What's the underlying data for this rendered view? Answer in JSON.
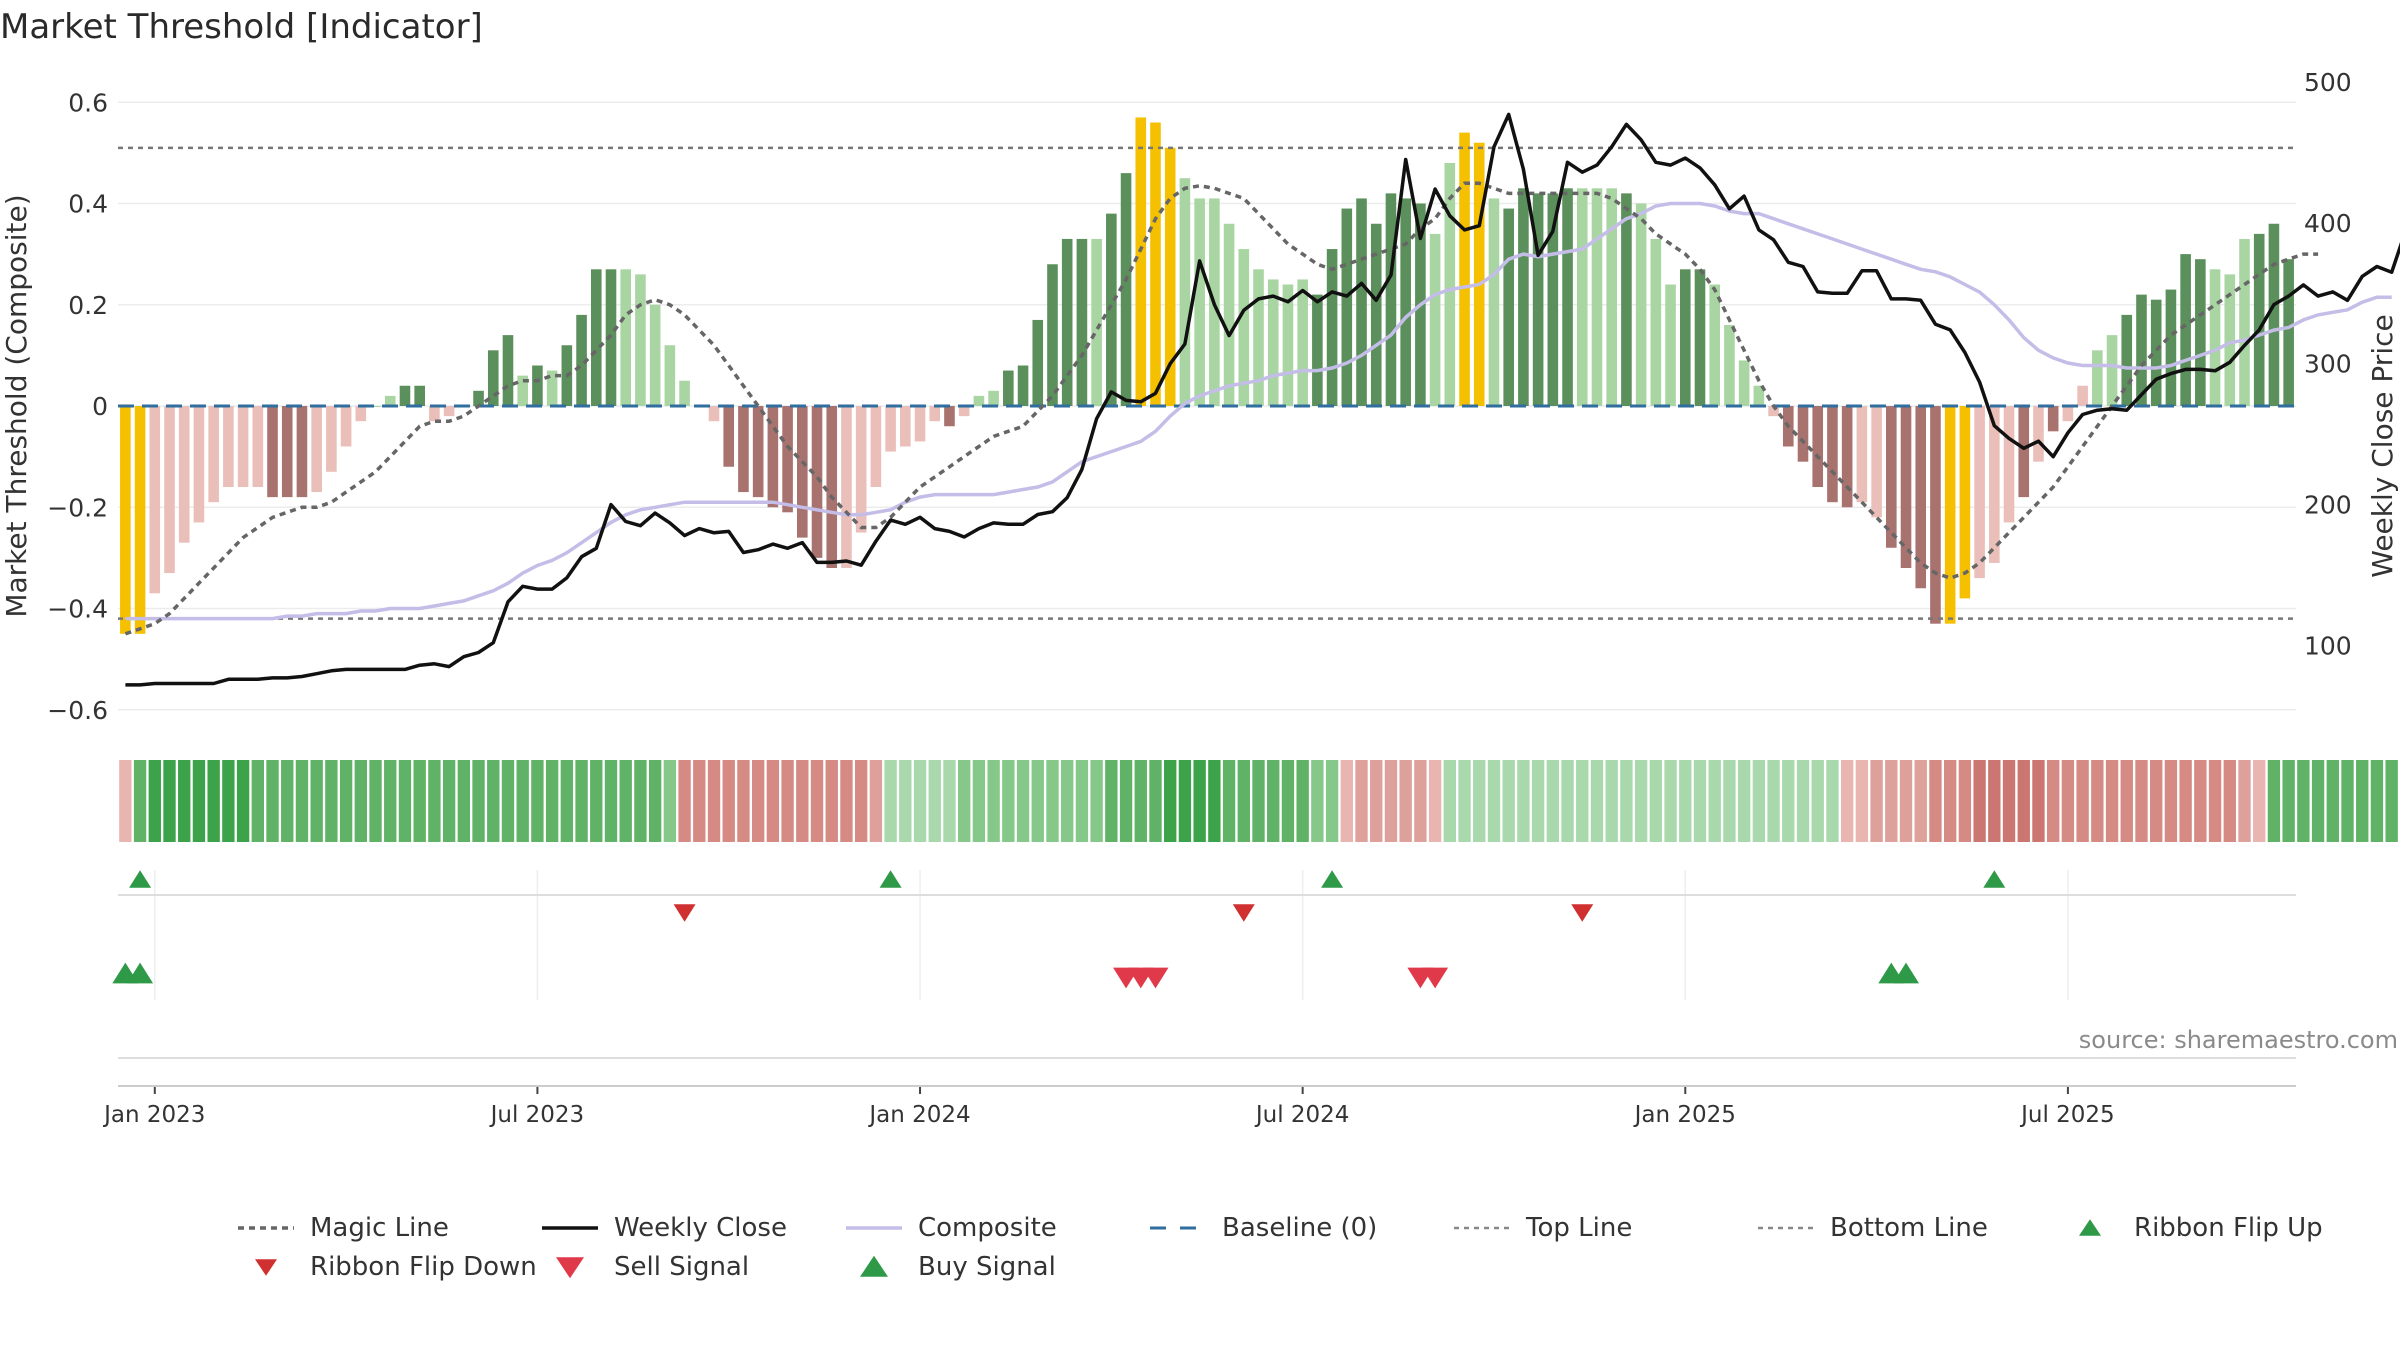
{
  "title": "Market Threshold [Indicator]",
  "source": "source: sharemaestro.com",
  "colors": {
    "strong_green": "#5b8f5b",
    "light_green": "#a8d5a2",
    "strong_red": "#a8726e",
    "light_red": "#eabfb9",
    "extreme": "#f5c000",
    "close": "#111111",
    "composite": "#c3bde8",
    "magic": "#666666",
    "baseline": "#2f6e9e",
    "flip_up": "#2e9a48",
    "flip_down": "#d03030",
    "sell": "#e0394a",
    "buy": "#2e9a48"
  },
  "chart_data": {
    "type": "bar",
    "title": "Market Threshold [Indicator]",
    "ylabel": "Market Threshold (Composite)",
    "ylabel_right": "Weekly Close Price",
    "ylim": [
      -0.64,
      0.64
    ],
    "ylim_right": [
      40,
      500
    ],
    "yticks": [
      {
        "v": 0.6,
        "label": "0.6"
      },
      {
        "v": 0.4,
        "label": "0.4"
      },
      {
        "v": 0.2,
        "label": "0.2"
      },
      {
        "v": 0,
        "label": "0"
      },
      {
        "v": -0.2,
        "label": "−0.2"
      },
      {
        "v": -0.4,
        "label": "−0.4"
      },
      {
        "v": -0.6,
        "label": "−0.6"
      }
    ],
    "yticks_right": [
      {
        "v": 500,
        "label": "500"
      },
      {
        "v": 400,
        "label": "400"
      },
      {
        "v": 300,
        "label": "300"
      },
      {
        "v": 200,
        "label": "200"
      },
      {
        "v": 100,
        "label": "100"
      }
    ],
    "xticks": [
      {
        "i": 2,
        "label": "Jan 2023"
      },
      {
        "i": 28,
        "label": "Jul 2023"
      },
      {
        "i": 54,
        "label": "Jan 2024"
      },
      {
        "i": 80,
        "label": "Jul 2024"
      },
      {
        "i": 106,
        "label": "Jan 2025"
      },
      {
        "i": 132,
        "label": "Jul 2025"
      }
    ],
    "top_line": 0.51,
    "bottom_line": -0.42,
    "grid": true,
    "legend_position": "bottom",
    "legend": [
      "Magic Line",
      "Weekly Close",
      "Composite",
      "Baseline (0)",
      "Top Line",
      "Bottom Line",
      "Ribbon Flip Up",
      "Ribbon Flip Down",
      "Sell Signal",
      "Buy Signal"
    ],
    "composite_bars": [
      -0.45,
      -0.45,
      -0.37,
      -0.33,
      -0.27,
      -0.23,
      -0.19,
      -0.16,
      -0.16,
      -0.16,
      -0.18,
      -0.18,
      -0.18,
      -0.17,
      -0.13,
      -0.08,
      -0.03,
      0,
      0.02,
      0.04,
      0.04,
      -0.03,
      -0.02,
      0,
      0.03,
      0.11,
      0.14,
      0.06,
      0.08,
      0.07,
      0.12,
      0.18,
      0.27,
      0.27,
      0.27,
      0.26,
      0.2,
      0.12,
      0.05,
      0,
      -0.03,
      -0.12,
      -0.17,
      -0.18,
      -0.2,
      -0.21,
      -0.26,
      -0.3,
      -0.32,
      -0.32,
      -0.25,
      -0.16,
      -0.09,
      -0.08,
      -0.07,
      -0.03,
      -0.04,
      -0.02,
      0.02,
      0.03,
      0.07,
      0.08,
      0.17,
      0.28,
      0.33,
      0.33,
      0.33,
      0.38,
      0.46,
      0.57,
      0.56,
      0.51,
      0.45,
      0.41,
      0.41,
      0.36,
      0.31,
      0.27,
      0.25,
      0.24,
      0.25,
      0.22,
      0.31,
      0.39,
      0.41,
      0.36,
      0.42,
      0.41,
      0.4,
      0.34,
      0.48,
      0.54,
      0.52,
      0.41,
      0.39,
      0.43,
      0.42,
      0.42,
      0.43,
      0.43,
      0.43,
      0.43,
      0.42,
      0.4,
      0.33,
      0.24,
      0.27,
      0.27,
      0.24,
      0.16,
      0.09,
      0.04,
      -0.02,
      -0.08,
      -0.11,
      -0.16,
      -0.19,
      -0.2,
      -0.19,
      -0.22,
      -0.28,
      -0.32,
      -0.36,
      -0.43,
      -0.43,
      -0.38,
      -0.34,
      -0.31,
      -0.23,
      -0.18,
      -0.11,
      -0.05,
      -0.03,
      0.04,
      0.11,
      0.14,
      0.18,
      0.22,
      0.21,
      0.23,
      0.3,
      0.29,
      0.27,
      0.26,
      0.33,
      0.34,
      0.36,
      0.29
    ],
    "bar_class": [
      "Y",
      "Y",
      "LR",
      "LR",
      "LR",
      "LR",
      "LR",
      "LR",
      "LR",
      "LR",
      "SR",
      "SR",
      "SR",
      "LR",
      "LR",
      "LR",
      "LR",
      "LG",
      "LG",
      "SG",
      "SG",
      "LR",
      "LR",
      "LG",
      "SG",
      "SG",
      "SG",
      "LG",
      "SG",
      "LG",
      "SG",
      "SG",
      "SG",
      "SG",
      "LG",
      "LG",
      "LG",
      "LG",
      "LG",
      "LR",
      "LR",
      "SR",
      "SR",
      "SR",
      "SR",
      "SR",
      "SR",
      "SR",
      "SR",
      "LR",
      "LR",
      "LR",
      "LR",
      "LR",
      "LR",
      "LR",
      "SR",
      "LR",
      "LG",
      "LG",
      "SG",
      "SG",
      "SG",
      "SG",
      "SG",
      "SG",
      "LG",
      "SG",
      "SG",
      "Y",
      "Y",
      "Y",
      "LG",
      "LG",
      "LG",
      "LG",
      "LG",
      "LG",
      "LG",
      "LG",
      "LG",
      "SG",
      "SG",
      "SG",
      "SG",
      "SG",
      "SG",
      "SG",
      "SG",
      "LG",
      "LG",
      "Y",
      "Y",
      "LG",
      "SG",
      "SG",
      "SG",
      "SG",
      "SG",
      "LG",
      "LG",
      "LG",
      "SG",
      "LG",
      "LG",
      "LG",
      "SG",
      "SG",
      "LG",
      "LG",
      "LG",
      "LG",
      "LR",
      "SR",
      "SR",
      "SR",
      "SR",
      "SR",
      "LR",
      "LR",
      "SR",
      "SR",
      "SR",
      "SR",
      "Y",
      "Y",
      "LR",
      "LR",
      "LR",
      "SR",
      "LR",
      "SR",
      "LR",
      "LR",
      "LG",
      "LG",
      "SG",
      "SG",
      "SG",
      "SG",
      "SG",
      "SG",
      "LG",
      "LG",
      "LG",
      "SG",
      "SG",
      "SG",
      "LG"
    ],
    "weekly_close": [
      72,
      72,
      73,
      73,
      73,
      73,
      73,
      76,
      76,
      76,
      77,
      77,
      78,
      80,
      82,
      83,
      83,
      83,
      83,
      83,
      86,
      87,
      85,
      92,
      95,
      102,
      131,
      142,
      140,
      140,
      148,
      163,
      169,
      200,
      188,
      185,
      194,
      187,
      178,
      183,
      180,
      181,
      166,
      168,
      172,
      169,
      173,
      159,
      159,
      160,
      157,
      174,
      189,
      186,
      191,
      183,
      181,
      177,
      183,
      187,
      186,
      186,
      193,
      195,
      205,
      225,
      261,
      280,
      274,
      273,
      279,
      300,
      314,
      373,
      342,
      320,
      338,
      346,
      348,
      344,
      352,
      344,
      351,
      348,
      357,
      345,
      363,
      445,
      389,
      424,
      405,
      395,
      398,
      454,
      477,
      438,
      377,
      394,
      443,
      436,
      441,
      454,
      470,
      459,
      443,
      441,
      446,
      439,
      427,
      410,
      419,
      395,
      388,
      372,
      369,
      351,
      350,
      350,
      366,
      366,
      346,
      346,
      345,
      328,
      324,
      308,
      287,
      256,
      247,
      240,
      245,
      234,
      251,
      264,
      267,
      268,
      267,
      278,
      289,
      293,
      296,
      296,
      295,
      301,
      313,
      324,
      342,
      348,
      356,
      348,
      351,
      345,
      362,
      369,
      365,
      396,
      387,
      381,
      382,
      362
    ],
    "composite_line": [
      -0.42,
      -0.42,
      -0.42,
      -0.42,
      -0.42,
      -0.42,
      -0.42,
      -0.42,
      -0.42,
      -0.42,
      -0.42,
      -0.415,
      -0.415,
      -0.41,
      -0.41,
      -0.41,
      -0.405,
      -0.405,
      -0.4,
      -0.4,
      -0.4,
      -0.395,
      -0.39,
      -0.385,
      -0.375,
      -0.365,
      -0.35,
      -0.33,
      -0.315,
      -0.305,
      -0.29,
      -0.27,
      -0.25,
      -0.23,
      -0.215,
      -0.205,
      -0.2,
      -0.195,
      -0.19,
      -0.19,
      -0.19,
      -0.19,
      -0.19,
      -0.19,
      -0.19,
      -0.195,
      -0.2,
      -0.205,
      -0.21,
      -0.215,
      -0.215,
      -0.21,
      -0.205,
      -0.19,
      -0.18,
      -0.175,
      -0.175,
      -0.175,
      -0.175,
      -0.175,
      -0.17,
      -0.165,
      -0.16,
      -0.15,
      -0.13,
      -0.11,
      -0.1,
      -0.09,
      -0.08,
      -0.07,
      -0.05,
      -0.02,
      0.005,
      0.02,
      0.03,
      0.04,
      0.045,
      0.05,
      0.06,
      0.065,
      0.07,
      0.07,
      0.075,
      0.085,
      0.1,
      0.12,
      0.14,
      0.175,
      0.2,
      0.22,
      0.23,
      0.235,
      0.24,
      0.26,
      0.29,
      0.3,
      0.295,
      0.3,
      0.305,
      0.31,
      0.33,
      0.35,
      0.37,
      0.38,
      0.395,
      0.4,
      0.4,
      0.4,
      0.395,
      0.385,
      0.38,
      0.38,
      0.37,
      0.36,
      0.35,
      0.34,
      0.33,
      0.32,
      0.31,
      0.3,
      0.29,
      0.28,
      0.27,
      0.265,
      0.255,
      0.24,
      0.225,
      0.2,
      0.17,
      0.135,
      0.11,
      0.095,
      0.085,
      0.08,
      0.08,
      0.08,
      0.075,
      0.075,
      0.075,
      0.08,
      0.09,
      0.1,
      0.11,
      0.125,
      0.13,
      0.14,
      0.15,
      0.155,
      0.17,
      0.18,
      0.185,
      0.19,
      0.205,
      0.215,
      0.215
    ],
    "magic_line": [
      -0.45,
      -0.44,
      -0.43,
      -0.41,
      -0.38,
      -0.35,
      -0.32,
      -0.29,
      -0.26,
      -0.24,
      -0.22,
      -0.21,
      -0.2,
      -0.2,
      -0.19,
      -0.17,
      -0.15,
      -0.13,
      -0.1,
      -0.07,
      -0.04,
      -0.03,
      -0.03,
      -0.02,
      0,
      0.02,
      0.04,
      0.05,
      0.05,
      0.06,
      0.06,
      0.08,
      0.11,
      0.14,
      0.18,
      0.2,
      0.21,
      0.2,
      0.18,
      0.15,
      0.12,
      0.08,
      0.04,
      0,
      -0.04,
      -0.08,
      -0.11,
      -0.14,
      -0.18,
      -0.21,
      -0.24,
      -0.24,
      -0.22,
      -0.19,
      -0.16,
      -0.14,
      -0.12,
      -0.1,
      -0.08,
      -0.06,
      -0.05,
      -0.04,
      -0.01,
      0.02,
      0.06,
      0.1,
      0.15,
      0.2,
      0.25,
      0.31,
      0.37,
      0.41,
      0.43,
      0.435,
      0.43,
      0.42,
      0.41,
      0.38,
      0.35,
      0.32,
      0.3,
      0.28,
      0.27,
      0.28,
      0.29,
      0.3,
      0.31,
      0.32,
      0.35,
      0.37,
      0.41,
      0.44,
      0.44,
      0.43,
      0.42,
      0.42,
      0.42,
      0.42,
      0.42,
      0.42,
      0.42,
      0.41,
      0.39,
      0.37,
      0.34,
      0.32,
      0.3,
      0.27,
      0.23,
      0.17,
      0.11,
      0.05,
      0,
      -0.04,
      -0.07,
      -0.1,
      -0.13,
      -0.16,
      -0.19,
      -0.22,
      -0.25,
      -0.28,
      -0.31,
      -0.33,
      -0.34,
      -0.33,
      -0.31,
      -0.28,
      -0.25,
      -0.22,
      -0.19,
      -0.16,
      -0.12,
      -0.08,
      -0.04,
      0,
      0.04,
      0.08,
      0.11,
      0.14,
      0.16,
      0.18,
      0.2,
      0.22,
      0.24,
      0.26,
      0.28,
      0.29,
      0.3,
      0.3
    ],
    "ribbon_levels": [
      -1,
      3,
      4,
      4,
      4,
      4,
      4,
      4,
      4,
      3,
      3,
      3,
      3,
      3,
      3,
      3,
      3,
      3,
      3,
      3,
      3,
      3,
      3,
      3,
      3,
      3,
      3,
      3,
      3,
      3,
      3,
      3,
      3,
      3,
      3,
      3,
      3,
      2,
      -3,
      -3,
      -3,
      -3,
      -3,
      -3,
      -3,
      -3,
      -3,
      -3,
      -3,
      -3,
      -3,
      -2,
      1,
      1,
      1,
      1,
      1,
      2,
      2,
      2,
      2,
      2,
      2,
      2,
      2,
      2,
      2,
      3,
      3,
      3,
      3,
      4,
      4,
      4,
      4,
      3,
      3,
      3,
      3,
      3,
      3,
      2,
      2,
      -1,
      -2,
      -2,
      -2,
      -2,
      -2,
      -1,
      1,
      1,
      1,
      1,
      1,
      1,
      1,
      1,
      1,
      1,
      1,
      1,
      1,
      1,
      1,
      1,
      1,
      1,
      1,
      1,
      1,
      1,
      1,
      1,
      1,
      1,
      1,
      -1,
      -1,
      -2,
      -2,
      -2,
      -2,
      -3,
      -3,
      -3,
      -4,
      -4,
      -4,
      -4,
      -4,
      -3,
      -3,
      -3,
      -3,
      -3,
      -3,
      -3,
      -3,
      -3,
      -3,
      -3,
      -3,
      -3,
      -2,
      -1,
      3,
      3,
      3,
      3,
      3,
      3,
      3,
      3,
      3,
      3,
      3,
      3,
      3,
      3,
      3,
      3,
      3,
      2
    ],
    "ribbon_flip_up": [
      1,
      52,
      82,
      127
    ],
    "ribbon_flip_down": [
      38,
      76,
      99
    ],
    "sell_signal": [
      68,
      69,
      70,
      88,
      89
    ],
    "buy_signal": [
      0,
      1,
      120,
      121
    ]
  }
}
